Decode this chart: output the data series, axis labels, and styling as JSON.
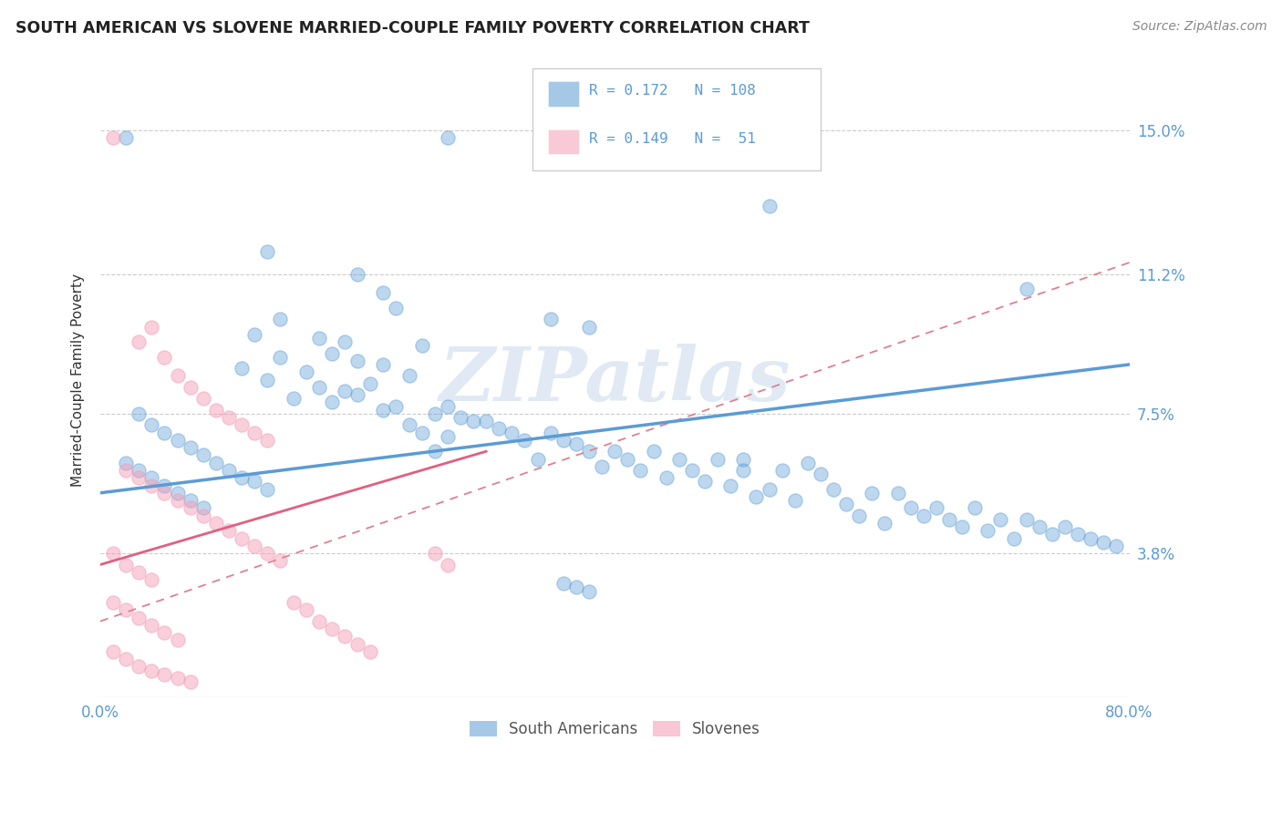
{
  "title": "SOUTH AMERICAN VS SLOVENE MARRIED-COUPLE FAMILY POVERTY CORRELATION CHART",
  "source": "Source: ZipAtlas.com",
  "ylabel": "Married-Couple Family Poverty",
  "xlim": [
    0,
    0.8
  ],
  "ylim": [
    0,
    0.168
  ],
  "yticks": [
    0.038,
    0.075,
    0.112,
    0.15
  ],
  "ytick_labels": [
    "3.8%",
    "7.5%",
    "11.2%",
    "15.0%"
  ],
  "blue_color": "#5b9bd5",
  "pink_color": "#f4a0b8",
  "axis_label_color": "#5b9bd5",
  "background_color": "#ffffff",
  "grid_color": "#cccccc",
  "watermark": "ZIPatlas",
  "blue_scatter": [
    [
      0.02,
      0.148
    ],
    [
      0.27,
      0.148
    ],
    [
      0.52,
      0.13
    ],
    [
      0.13,
      0.118
    ],
    [
      0.2,
      0.112
    ],
    [
      0.22,
      0.107
    ],
    [
      0.23,
      0.103
    ],
    [
      0.14,
      0.1
    ],
    [
      0.35,
      0.1
    ],
    [
      0.38,
      0.098
    ],
    [
      0.12,
      0.096
    ],
    [
      0.17,
      0.095
    ],
    [
      0.19,
      0.094
    ],
    [
      0.25,
      0.093
    ],
    [
      0.18,
      0.091
    ],
    [
      0.14,
      0.09
    ],
    [
      0.2,
      0.089
    ],
    [
      0.22,
      0.088
    ],
    [
      0.11,
      0.087
    ],
    [
      0.16,
      0.086
    ],
    [
      0.24,
      0.085
    ],
    [
      0.13,
      0.084
    ],
    [
      0.21,
      0.083
    ],
    [
      0.17,
      0.082
    ],
    [
      0.19,
      0.081
    ],
    [
      0.2,
      0.08
    ],
    [
      0.15,
      0.079
    ],
    [
      0.18,
      0.078
    ],
    [
      0.23,
      0.077
    ],
    [
      0.27,
      0.077
    ],
    [
      0.22,
      0.076
    ],
    [
      0.26,
      0.075
    ],
    [
      0.28,
      0.074
    ],
    [
      0.29,
      0.073
    ],
    [
      0.3,
      0.073
    ],
    [
      0.24,
      0.072
    ],
    [
      0.31,
      0.071
    ],
    [
      0.25,
      0.07
    ],
    [
      0.32,
      0.07
    ],
    [
      0.35,
      0.07
    ],
    [
      0.27,
      0.069
    ],
    [
      0.33,
      0.068
    ],
    [
      0.36,
      0.068
    ],
    [
      0.37,
      0.067
    ],
    [
      0.26,
      0.065
    ],
    [
      0.38,
      0.065
    ],
    [
      0.4,
      0.065
    ],
    [
      0.43,
      0.065
    ],
    [
      0.34,
      0.063
    ],
    [
      0.41,
      0.063
    ],
    [
      0.45,
      0.063
    ],
    [
      0.48,
      0.063
    ],
    [
      0.5,
      0.063
    ],
    [
      0.55,
      0.062
    ],
    [
      0.39,
      0.061
    ],
    [
      0.42,
      0.06
    ],
    [
      0.46,
      0.06
    ],
    [
      0.5,
      0.06
    ],
    [
      0.53,
      0.06
    ],
    [
      0.56,
      0.059
    ],
    [
      0.44,
      0.058
    ],
    [
      0.47,
      0.057
    ],
    [
      0.49,
      0.056
    ],
    [
      0.52,
      0.055
    ],
    [
      0.57,
      0.055
    ],
    [
      0.6,
      0.054
    ],
    [
      0.62,
      0.054
    ],
    [
      0.51,
      0.053
    ],
    [
      0.54,
      0.052
    ],
    [
      0.58,
      0.051
    ],
    [
      0.63,
      0.05
    ],
    [
      0.65,
      0.05
    ],
    [
      0.68,
      0.05
    ],
    [
      0.59,
      0.048
    ],
    [
      0.64,
      0.048
    ],
    [
      0.66,
      0.047
    ],
    [
      0.7,
      0.047
    ],
    [
      0.72,
      0.047
    ],
    [
      0.61,
      0.046
    ],
    [
      0.67,
      0.045
    ],
    [
      0.73,
      0.045
    ],
    [
      0.75,
      0.045
    ],
    [
      0.69,
      0.044
    ],
    [
      0.74,
      0.043
    ],
    [
      0.76,
      0.043
    ],
    [
      0.71,
      0.042
    ],
    [
      0.77,
      0.042
    ],
    [
      0.78,
      0.041
    ],
    [
      0.79,
      0.04
    ],
    [
      0.09,
      0.062
    ],
    [
      0.1,
      0.06
    ],
    [
      0.11,
      0.058
    ],
    [
      0.12,
      0.057
    ],
    [
      0.13,
      0.055
    ],
    [
      0.06,
      0.068
    ],
    [
      0.07,
      0.066
    ],
    [
      0.08,
      0.064
    ],
    [
      0.04,
      0.072
    ],
    [
      0.05,
      0.07
    ],
    [
      0.03,
      0.075
    ],
    [
      0.02,
      0.062
    ],
    [
      0.03,
      0.06
    ],
    [
      0.04,
      0.058
    ],
    [
      0.05,
      0.056
    ],
    [
      0.06,
      0.054
    ],
    [
      0.07,
      0.052
    ],
    [
      0.08,
      0.05
    ],
    [
      0.72,
      0.108
    ],
    [
      0.36,
      0.03
    ],
    [
      0.37,
      0.029
    ],
    [
      0.38,
      0.028
    ]
  ],
  "pink_scatter": [
    [
      0.01,
      0.148
    ],
    [
      0.04,
      0.098
    ],
    [
      0.06,
      0.085
    ],
    [
      0.07,
      0.082
    ],
    [
      0.08,
      0.079
    ],
    [
      0.09,
      0.076
    ],
    [
      0.1,
      0.074
    ],
    [
      0.11,
      0.072
    ],
    [
      0.12,
      0.07
    ],
    [
      0.13,
      0.068
    ],
    [
      0.05,
      0.09
    ],
    [
      0.03,
      0.094
    ],
    [
      0.02,
      0.06
    ],
    [
      0.03,
      0.058
    ],
    [
      0.04,
      0.056
    ],
    [
      0.05,
      0.054
    ],
    [
      0.06,
      0.052
    ],
    [
      0.07,
      0.05
    ],
    [
      0.08,
      0.048
    ],
    [
      0.09,
      0.046
    ],
    [
      0.1,
      0.044
    ],
    [
      0.11,
      0.042
    ],
    [
      0.12,
      0.04
    ],
    [
      0.13,
      0.038
    ],
    [
      0.14,
      0.036
    ],
    [
      0.01,
      0.038
    ],
    [
      0.02,
      0.035
    ],
    [
      0.03,
      0.033
    ],
    [
      0.04,
      0.031
    ],
    [
      0.01,
      0.025
    ],
    [
      0.02,
      0.023
    ],
    [
      0.03,
      0.021
    ],
    [
      0.04,
      0.019
    ],
    [
      0.05,
      0.017
    ],
    [
      0.06,
      0.015
    ],
    [
      0.01,
      0.012
    ],
    [
      0.02,
      0.01
    ],
    [
      0.03,
      0.008
    ],
    [
      0.04,
      0.007
    ],
    [
      0.05,
      0.006
    ],
    [
      0.06,
      0.005
    ],
    [
      0.07,
      0.004
    ],
    [
      0.26,
      0.038
    ],
    [
      0.27,
      0.035
    ],
    [
      0.15,
      0.025
    ],
    [
      0.16,
      0.023
    ],
    [
      0.17,
      0.02
    ],
    [
      0.18,
      0.018
    ],
    [
      0.19,
      0.016
    ],
    [
      0.2,
      0.014
    ],
    [
      0.21,
      0.012
    ]
  ],
  "blue_trend": [
    0.0,
    0.8,
    0.054,
    0.088
  ],
  "pink_trend": [
    0.0,
    0.3,
    0.035,
    0.065
  ],
  "pink_dashed_trend": [
    0.0,
    0.8,
    0.02,
    0.115
  ]
}
